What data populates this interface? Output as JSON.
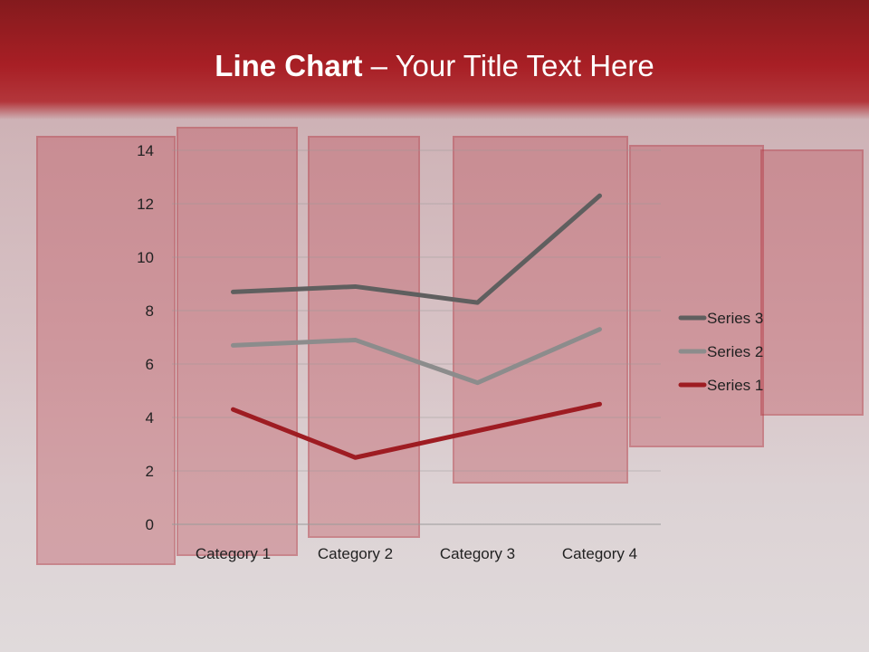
{
  "slide": {
    "title_bold": "Line Chart",
    "title_rest": " – Your Title Text Here"
  },
  "chart_data": {
    "type": "line",
    "stacked": true,
    "title": "",
    "categories": [
      "Category 1",
      "Category 2",
      "Category 3",
      "Category 4"
    ],
    "series": [
      {
        "name": "Series 1",
        "values": [
          4.3,
          2.5,
          3.5,
          4.5
        ],
        "color": "#9e1c22"
      },
      {
        "name": "Series 2",
        "values": [
          2.4,
          4.4,
          1.8,
          2.8
        ],
        "color": "#8c8c8c"
      },
      {
        "name": "Series 3",
        "values": [
          2,
          2,
          3,
          5
        ],
        "color": "#5f5f5f"
      }
    ],
    "ylim": [
      0,
      14
    ],
    "yticks": [
      "0",
      "2",
      "4",
      "6",
      "8",
      "10",
      "12",
      "14"
    ],
    "grid": true,
    "legend": "right"
  }
}
